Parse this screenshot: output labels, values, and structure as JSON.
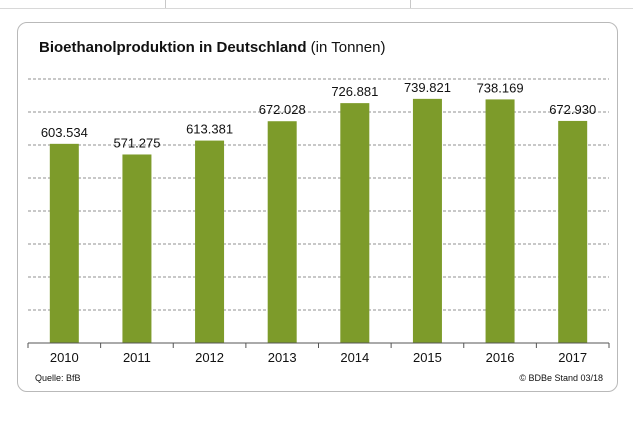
{
  "chart_data": {
    "type": "bar",
    "title": "Bioethanolproduktion in Deutschland",
    "subtitle": "(in Tonnen)",
    "categories": [
      "2010",
      "2011",
      "2012",
      "2013",
      "2014",
      "2015",
      "2016",
      "2017"
    ],
    "values": [
      603534,
      571275,
      613381,
      672028,
      726881,
      739821,
      738169,
      672930
    ],
    "value_labels": [
      "603.534",
      "571.275",
      "613.381",
      "672.028",
      "726.881",
      "739.821",
      "738.169",
      "672.930"
    ],
    "xlabel": "",
    "ylabel": "",
    "ylim": [
      0,
      800000
    ],
    "grid": "horizontal dashed",
    "bar_color": "#7d9b2a"
  },
  "footer": {
    "source": "Quelle:  BfB",
    "copyright": "© BDBe Stand 03/18"
  }
}
